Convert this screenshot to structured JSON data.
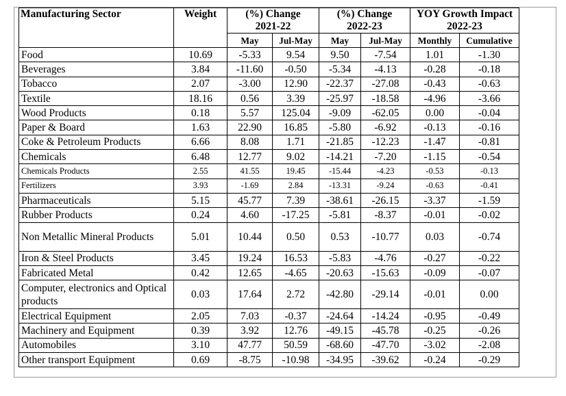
{
  "columns": {
    "sector": "Manufacturing Sector",
    "weight": "Weight",
    "group1": {
      "line1": "(%) Change",
      "line2": "2021-22"
    },
    "group2": {
      "line1": "(%) Change",
      "line2": "2022-23"
    },
    "group3": {
      "line1": "YOY Growth Impact",
      "line2": "2022-23"
    },
    "sub": [
      "May",
      "Jul-May",
      "May",
      "Jul-May",
      "Monthly",
      "Cumulative"
    ]
  },
  "rows": [
    {
      "sector": "Food",
      "values": [
        "10.69",
        "-5.33",
        "9.54",
        "9.50",
        "-7.54",
        "1.01",
        "-1.30"
      ]
    },
    {
      "sector": "Beverages",
      "values": [
        "3.84",
        "-11.60",
        "-0.50",
        "-5.34",
        "-4.13",
        "-0.28",
        "-0.18"
      ]
    },
    {
      "sector": "Tobacco",
      "values": [
        "2.07",
        "-3.00",
        "12.90",
        "-22.37",
        "-27.08",
        "-0.43",
        "-0.63"
      ]
    },
    {
      "sector": "Textile",
      "values": [
        "18.16",
        "0.56",
        "3.39",
        "-25.97",
        "-18.58",
        "-4.96",
        "-3.66"
      ]
    },
    {
      "sector": "Wood Products",
      "values": [
        "0.18",
        "5.57",
        "125.04",
        "-9.09",
        "-62.05",
        "0.00",
        "-0.04"
      ]
    },
    {
      "sector": "Paper & Board",
      "values": [
        "1.63",
        "22.90",
        "16.85",
        "-5.80",
        "-6.92",
        "-0.13",
        "-0.16"
      ]
    },
    {
      "sector": "Coke & Petroleum Products",
      "values": [
        "6.66",
        "8.08",
        "1.71",
        "-21.85",
        "-12.23",
        "-1.47",
        "-0.81"
      ]
    },
    {
      "sector": "Chemicals",
      "values": [
        "6.48",
        "12.77",
        "9.02",
        "-14.21",
        "-7.20",
        "-1.15",
        "-0.54"
      ]
    },
    {
      "sector": "Chemicals Products",
      "values": [
        "2.55",
        "41.55",
        "19.45",
        "-15.44",
        "-4.23",
        "-0.53",
        "-0.13"
      ]
    },
    {
      "sector": "Fertilizers",
      "values": [
        "3.93",
        "-1.69",
        "2.84",
        "-13.31",
        "-9.24",
        "-0.63",
        "-0.41"
      ]
    },
    {
      "sector": "Pharmaceuticals",
      "values": [
        "5.15",
        "45.77",
        "7.39",
        "-38.61",
        "-26.15",
        "-3.37",
        "-1.59"
      ]
    },
    {
      "sector": "Rubber Products",
      "values": [
        "0.24",
        "4.60",
        "-17.25",
        "-5.81",
        "-8.37",
        "-0.01",
        "-0.02"
      ]
    },
    {
      "sector": "Non Metallic Mineral Products",
      "values": [
        "5.01",
        "10.44",
        "0.50",
        "0.53",
        "-10.77",
        "0.03",
        "-0.74"
      ]
    },
    {
      "sector": "Iron & Steel Products",
      "values": [
        "3.45",
        "19.24",
        "16.53",
        "-5.83",
        "-4.76",
        "-0.27",
        "-0.22"
      ]
    },
    {
      "sector": "Fabricated Metal",
      "values": [
        "0.42",
        "12.65",
        "-4.65",
        "-20.63",
        "-15.63",
        "-0.09",
        "-0.07"
      ]
    },
    {
      "sector": "Computer, electronics and Optical products",
      "values": [
        "0.03",
        "17.64",
        "2.72",
        "-42.80",
        "-29.14",
        "-0.01",
        "0.00"
      ]
    },
    {
      "sector": "Electrical Equipment",
      "values": [
        "2.05",
        "7.03",
        "-0.37",
        "-24.64",
        "-14.24",
        "-0.95",
        "-0.49"
      ]
    },
    {
      "sector": "Machinery and  Equipment",
      "values": [
        "0.39",
        "3.92",
        "12.76",
        "-49.15",
        "-45.78",
        "-0.25",
        "-0.26"
      ]
    },
    {
      "sector": "Automobiles",
      "values": [
        "3.10",
        "47.77",
        "50.59",
        "-68.60",
        "-47.70",
        "-3.02",
        "-2.08"
      ]
    },
    {
      "sector": "Other transport  Equipment",
      "values": [
        "0.69",
        "-8.75",
        "-10.98",
        "-34.95",
        "-39.62",
        "-0.24",
        "-0.29"
      ]
    }
  ]
}
